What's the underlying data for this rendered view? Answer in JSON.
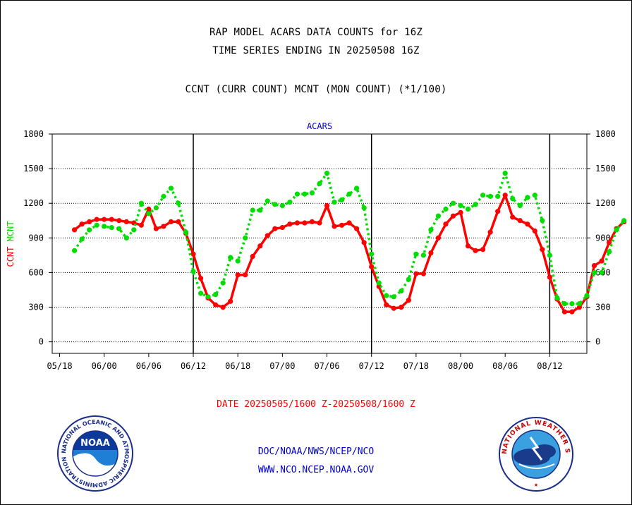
{
  "header": {
    "title_line1": "RAP MODEL ACARS DATA COUNTS for 16Z",
    "title_line2": "TIME SERIES ENDING IN 20250508 16Z",
    "subtitle": "CCNT (CURR COUNT) MCNT (MON COUNT) (*1/100)"
  },
  "footer": {
    "date_range": "DATE 20250505/1600 Z-20250508/1600 Z",
    "org_path": "DOC/NOAA/NWS/NCEP/NCO",
    "url": "WWW.NCO.NCEP.NOAA.GOV"
  },
  "logos": {
    "noaa_text": "NOAA",
    "noaa_ring": "NATIONAL OCEANIC AND ATMOSPHERIC ADMINISTRATION · U.S. DEPARTMENT OF COMMERCE ·",
    "nws_ring": "NATIONAL WEATHER SERVICE"
  },
  "colors": {
    "ccnt": "#ff0000",
    "mcnt": "#00dd00",
    "label_blue": "#0000cc",
    "date_red": "#ff0000"
  },
  "chart_data": {
    "type": "line",
    "title": "ACARS",
    "ylabel_left": [
      "CCNT",
      "MCNT"
    ],
    "ylabel_right": "",
    "ylim": [
      -100,
      1800
    ],
    "yticks": [
      0,
      300,
      600,
      900,
      1200,
      1500,
      1800
    ],
    "xlim": [
      -3,
      69
    ],
    "x_tick_positions": [
      -2,
      4,
      10,
      16,
      22,
      28,
      34,
      40,
      46,
      52,
      58,
      64
    ],
    "x_tick_labels": [
      "05/18",
      "06/00",
      "06/06",
      "06/12",
      "06/18",
      "07/00",
      "07/06",
      "07/12",
      "07/18",
      "08/00",
      "08/06",
      "08/12"
    ],
    "day_dividers": [
      16,
      40,
      64
    ],
    "grid": "horizontal dotted",
    "series": [
      {
        "name": "CCNT",
        "style": "solid",
        "values": [
          970,
          1020,
          1040,
          1060,
          1060,
          1060,
          1050,
          1040,
          1030,
          1010,
          1150,
          980,
          1000,
          1040,
          1040,
          940,
          760,
          550,
          380,
          320,
          300,
          350,
          580,
          580,
          740,
          830,
          920,
          980,
          990,
          1020,
          1030,
          1030,
          1040,
          1030,
          1180,
          1000,
          1010,
          1030,
          980,
          860,
          650,
          480,
          320,
          290,
          300,
          360,
          590,
          590,
          770,
          900,
          1020,
          1090,
          1120,
          830,
          790,
          800,
          950,
          1130,
          1270,
          1080,
          1050,
          1020,
          960,
          800,
          560,
          370,
          260,
          260,
          300,
          390,
          660,
          700,
          860,
          980,
          1040
        ]
      },
      {
        "name": "MCNT",
        "style": "dotted",
        "values": [
          790,
          890,
          970,
          1010,
          1000,
          990,
          980,
          900,
          970,
          1200,
          1110,
          1160,
          1260,
          1330,
          1200,
          950,
          610,
          420,
          390,
          410,
          510,
          730,
          700,
          900,
          1140,
          1140,
          1220,
          1190,
          1180,
          1210,
          1280,
          1280,
          1290,
          1370,
          1460,
          1210,
          1230,
          1280,
          1330,
          1160,
          760,
          510,
          400,
          390,
          440,
          540,
          760,
          750,
          970,
          1090,
          1150,
          1200,
          1180,
          1150,
          1190,
          1270,
          1260,
          1260,
          1460,
          1240,
          1180,
          1250,
          1270,
          1050,
          750,
          380,
          330,
          330,
          330,
          400,
          600,
          600,
          780,
          970,
          1050
        ]
      }
    ]
  }
}
